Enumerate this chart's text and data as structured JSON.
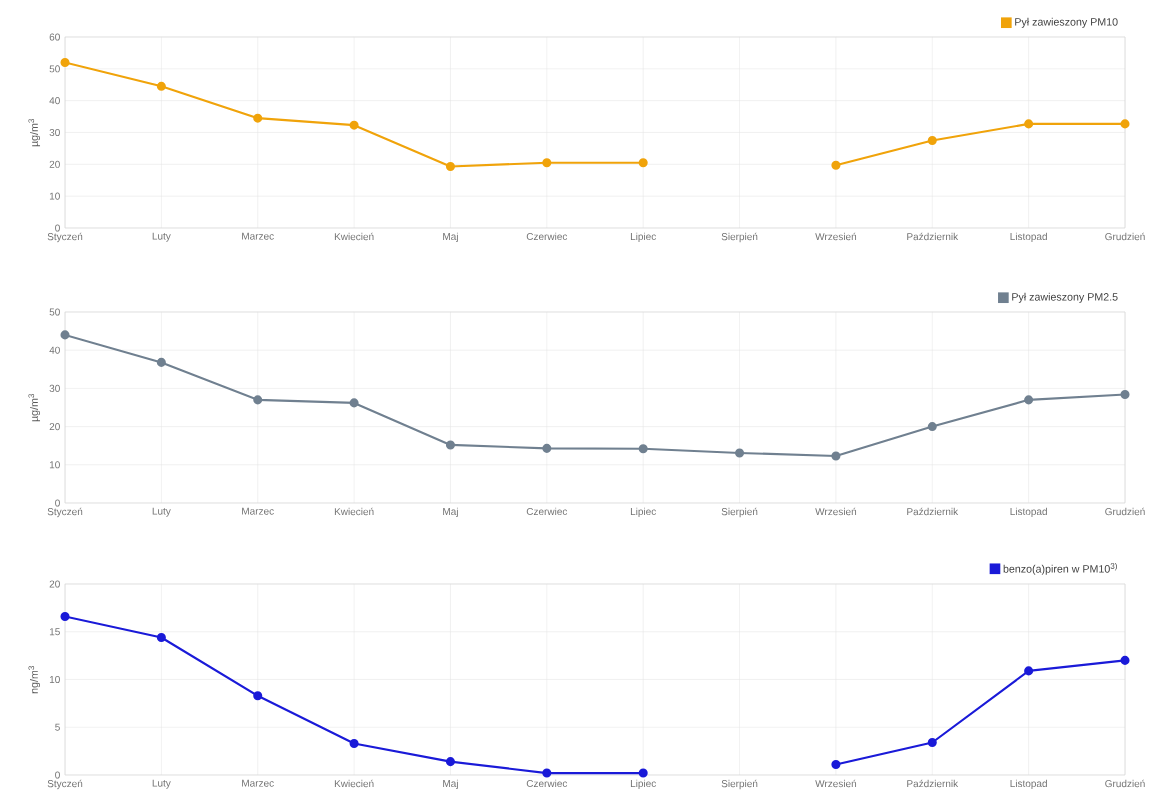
{
  "chart_data": [
    {
      "type": "line",
      "categories": [
        "Styczeń",
        "Luty",
        "Marzec",
        "Kwiecień",
        "Maj",
        "Czerwiec",
        "Lipiec",
        "Sierpień",
        "Wrzesień",
        "Październik",
        "Listopad",
        "Grudzień"
      ],
      "ylabel": "µg/m$^{3}$",
      "ylim": [
        0,
        60
      ],
      "yticks": [
        0,
        10,
        20,
        30,
        40,
        50,
        60
      ],
      "grid": true,
      "legend": "top right",
      "marker": "circle",
      "line_style": "solid",
      "series": [
        {
          "name": "Pył zawieszony PM10",
          "color": "#f0a30a",
          "values": [
            52,
            44.5,
            34.5,
            32.3,
            19.3,
            20.5,
            20.5,
            null,
            19.7,
            27.5,
            32.7,
            32.7
          ]
        }
      ]
    },
    {
      "type": "line",
      "categories": [
        "Styczeń",
        "Luty",
        "Marzec",
        "Kwiecień",
        "Maj",
        "Czerwiec",
        "Lipiec",
        "Sierpień",
        "Wrzesień",
        "Październik",
        "Listopad",
        "Grudzień"
      ],
      "ylabel": "µg/m$^{3}$",
      "ylim": [
        0,
        50
      ],
      "yticks": [
        0,
        10,
        20,
        30,
        40,
        50
      ],
      "grid": true,
      "legend": "top right",
      "marker": "circle",
      "line_style": "solid",
      "series": [
        {
          "name": "Pył zawieszony PM2.5",
          "color": "#708090",
          "values": [
            44,
            36.8,
            27,
            26.2,
            15.2,
            14.3,
            14.2,
            13.1,
            12.3,
            20,
            27,
            28.4
          ]
        }
      ]
    },
    {
      "type": "line",
      "categories": [
        "Styczeń",
        "Luty",
        "Marzec",
        "Kwiecień",
        "Maj",
        "Czerwiec",
        "Lipiec",
        "Sierpień",
        "Wrzesień",
        "Październik",
        "Listopad",
        "Grudzień"
      ],
      "ylabel": "ng/m$^{3}$",
      "ylim": [
        0,
        20
      ],
      "yticks": [
        0,
        5,
        10,
        15,
        20
      ],
      "grid": true,
      "legend": "top right",
      "marker": "circle",
      "line_style": "solid",
      "series": [
        {
          "name": "benzo(a)piren w PM10$^{3)}$",
          "color": "#1a1ad8",
          "values": [
            16.6,
            14.4,
            8.3,
            3.3,
            1.4,
            0.2,
            0.2,
            null,
            1.1,
            3.4,
            10.9,
            12
          ]
        }
      ]
    }
  ]
}
